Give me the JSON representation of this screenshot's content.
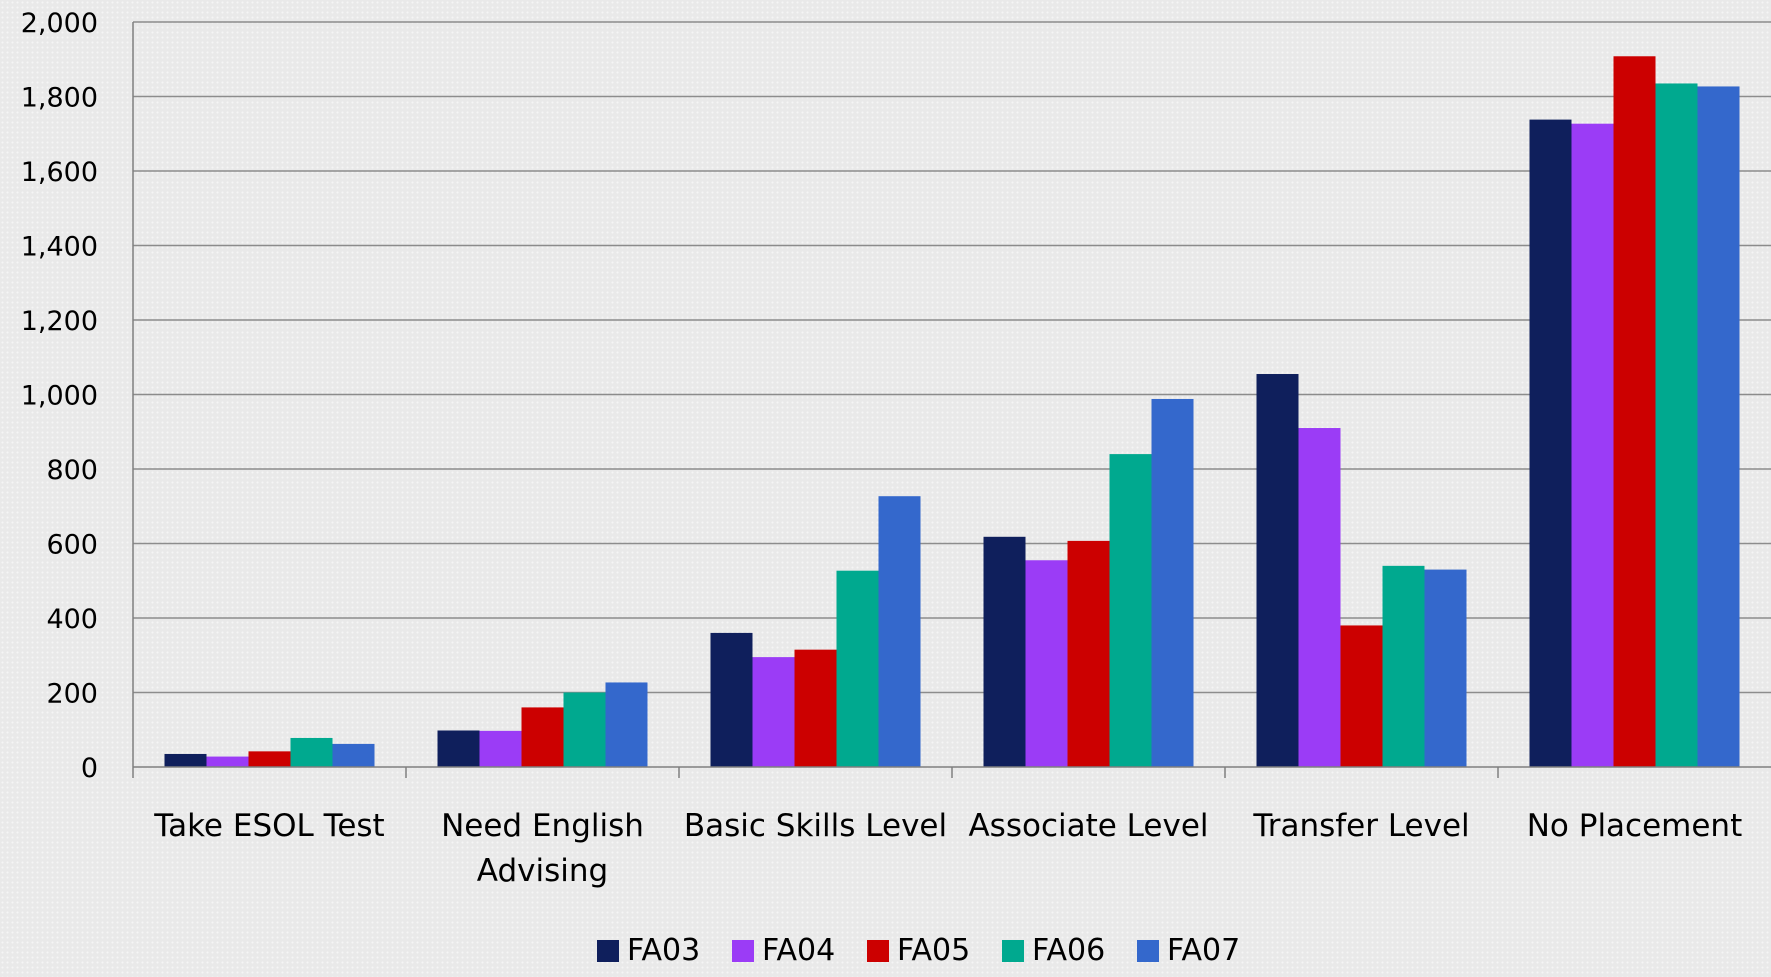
{
  "chart_data": {
    "type": "bar",
    "title": "",
    "xlabel": "",
    "ylabel": "",
    "ylim": [
      0,
      2000
    ],
    "y_ticks": [
      0,
      200,
      400,
      600,
      800,
      1000,
      1200,
      1400,
      1600,
      1800,
      2000
    ],
    "y_tick_labels": [
      "0",
      "200",
      "400",
      "600",
      "800",
      "1,000",
      "1,200",
      "1,400",
      "1,600",
      "1,800",
      "2,000"
    ],
    "grid": true,
    "legend_position": "bottom",
    "categories": [
      [
        "Take ESOL Test"
      ],
      [
        "Need English",
        "Advising"
      ],
      [
        "Basic Skills Level"
      ],
      [
        "Associate Level"
      ],
      [
        "Transfer Level"
      ],
      [
        "No Placement"
      ]
    ],
    "series": [
      {
        "name": "FA03",
        "color": "#0f1f5c",
        "values": [
          35,
          98,
          360,
          618,
          1055,
          1738
        ]
      },
      {
        "name": "FA04",
        "color": "#9b3cf6",
        "values": [
          28,
          97,
          295,
          555,
          910,
          1727
        ]
      },
      {
        "name": "FA05",
        "color": "#cc0000",
        "values": [
          42,
          160,
          315,
          607,
          380,
          1908
        ]
      },
      {
        "name": "FA06",
        "color": "#00a98f",
        "values": [
          78,
          200,
          527,
          840,
          540,
          1835
        ]
      },
      {
        "name": "FA07",
        "color": "#3468cc",
        "values": [
          62,
          227,
          727,
          988,
          530,
          1827
        ]
      }
    ]
  }
}
